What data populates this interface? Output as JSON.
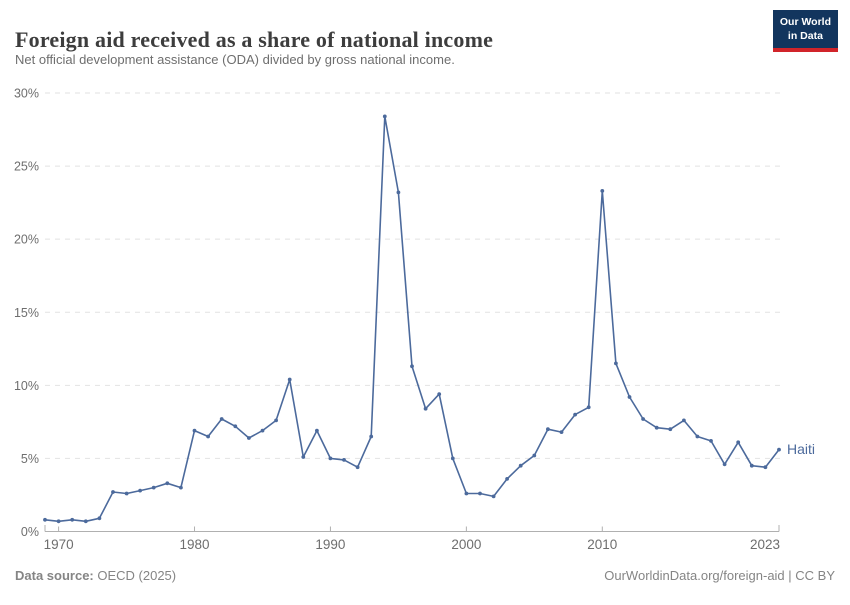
{
  "header": {
    "title": "Foreign aid received as a share of national income",
    "subtitle": "Net official development assistance (ODA) divided by gross national income.",
    "logo": {
      "line1": "Our World",
      "line2": "in Data",
      "bg_color": "#12355e",
      "accent_color": "#d1242a"
    }
  },
  "chart_data": {
    "type": "line",
    "title": "Foreign aid received as a share of national income",
    "subtitle": "Net official development assistance (ODA) divided by gross national income.",
    "xlabel": "",
    "ylabel": "",
    "xlim": [
      1969,
      2023
    ],
    "ylim": [
      0,
      30
    ],
    "grid": true,
    "legend_position": "end-of-line",
    "x_ticks": [
      1970,
      1980,
      1990,
      2000,
      2010,
      2023
    ],
    "y_ticks": [
      0,
      5,
      10,
      15,
      20,
      25,
      30
    ],
    "y_tick_suffix": "%",
    "series": [
      {
        "name": "Haiti",
        "color": "#4c6a9c",
        "x": [
          1969,
          1970,
          1971,
          1972,
          1973,
          1974,
          1975,
          1976,
          1977,
          1978,
          1979,
          1980,
          1981,
          1982,
          1983,
          1984,
          1985,
          1986,
          1987,
          1988,
          1989,
          1990,
          1991,
          1992,
          1993,
          1994,
          1995,
          1996,
          1997,
          1998,
          1999,
          2000,
          2001,
          2002,
          2003,
          2004,
          2005,
          2006,
          2007,
          2008,
          2009,
          2010,
          2011,
          2012,
          2013,
          2014,
          2015,
          2016,
          2017,
          2018,
          2019,
          2020,
          2021,
          2022,
          2023
        ],
        "values": [
          0.8,
          0.7,
          0.8,
          0.7,
          0.9,
          2.7,
          2.6,
          2.8,
          3.0,
          3.3,
          3.0,
          6.9,
          6.5,
          7.7,
          7.2,
          6.4,
          6.9,
          7.6,
          10.4,
          5.1,
          6.9,
          5.0,
          4.9,
          4.4,
          6.5,
          28.4,
          23.2,
          11.3,
          8.4,
          9.4,
          5.0,
          2.6,
          2.6,
          2.4,
          3.6,
          4.5,
          5.2,
          7.0,
          6.8,
          8.0,
          8.5,
          23.3,
          11.5,
          9.2,
          7.7,
          7.1,
          7.0,
          7.6,
          6.5,
          6.2,
          4.6,
          6.1,
          4.5,
          4.4,
          5.6
        ]
      }
    ],
    "colors": {
      "line": "#4c6a9c",
      "gridline": "#e2e2e2",
      "axis": "#b0b0b0",
      "tick_text": "#6e6e6e"
    }
  },
  "footer": {
    "source_label": "Data source:",
    "source_value": " OECD (2025)",
    "right_text": "OurWorldinData.org/foreign-aid | CC BY"
  }
}
